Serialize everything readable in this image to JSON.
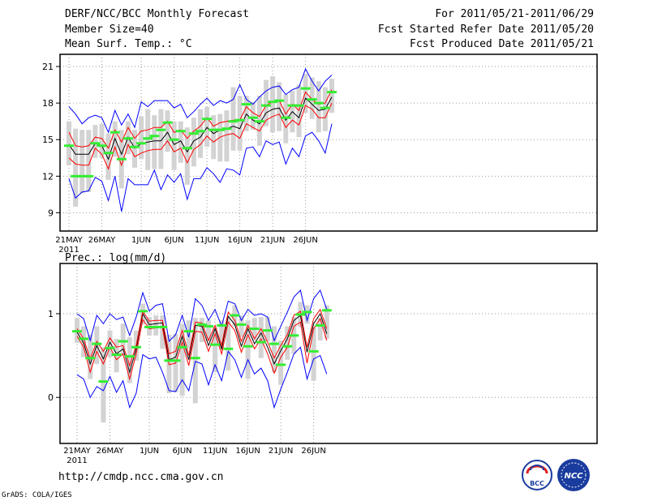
{
  "header": {
    "title": "DERF/NCC/BCC Monthly Forecast",
    "member_size": "Member Size=40",
    "variable_temp": "Mean Surf. Temp.: °C",
    "period": "For 2011/05/21-2011/06/29",
    "refer_date": "Fcst Started Refer Date 2011/05/20",
    "produced_date": "Fcst Produced Date 2011/05/21"
  },
  "footer": {
    "url": "http://cmdp.ncc.cma.gov.cn",
    "credit": "GrADS: COLA/IGES",
    "logo_bcc_text": "BCC",
    "logo_ncc_text": "NCC"
  },
  "colors": {
    "mean": "#000000",
    "spread": "#ff0000",
    "extreme": "#0000ff",
    "box": "#d3d3d3",
    "observed": "#33ee33",
    "grid": "#9a9a9a"
  },
  "chart_data": [
    {
      "id": "temp",
      "type": "line",
      "title": "Mean Surf. Temp.: °C",
      "x_ticks": [
        "21MAY",
        "26MAY",
        "1JUN",
        "6JUN",
        "11JUN",
        "16JUN",
        "21JUN",
        "26JUN"
      ],
      "x_tick_index": [
        0,
        5,
        11,
        16,
        21,
        26,
        31,
        36
      ],
      "x_year": "2011",
      "y_ticks": [
        9,
        12,
        15,
        18,
        21
      ],
      "y_range": [
        7.5,
        22
      ],
      "series": [
        {
          "name": "mean",
          "values": [
            14.6,
            13.8,
            13.8,
            13.8,
            14.7,
            14.5,
            13.4,
            15.1,
            13.8,
            15.2,
            14.3,
            14.7,
            14.8,
            14.9,
            14.9,
            15.6,
            14.6,
            14.9,
            14.0,
            14.9,
            15.2,
            16.0,
            15.5,
            15.8,
            15.9,
            16.1,
            15.9,
            17.1,
            16.6,
            16.3,
            17.2,
            17.5,
            17.6,
            16.6,
            17.3,
            16.8,
            18.4,
            17.9,
            17.4,
            17.5,
            18.5
          ]
        },
        {
          "name": "upper",
          "values": [
            15.6,
            14.5,
            14.4,
            14.5,
            15.2,
            15.1,
            14.3,
            15.8,
            14.8,
            16.0,
            15.1,
            15.7,
            15.8,
            16.0,
            16.0,
            16.5,
            15.6,
            15.8,
            15.1,
            15.7,
            16.1,
            16.8,
            16.1,
            16.4,
            16.5,
            16.6,
            16.6,
            17.7,
            17.2,
            16.9,
            17.8,
            18.1,
            18.2,
            17.1,
            17.9,
            17.4,
            18.9,
            18.3,
            17.9,
            18.0,
            19.1
          ]
        },
        {
          "name": "lower",
          "values": [
            13.5,
            13.0,
            12.9,
            12.9,
            14.3,
            13.8,
            12.6,
            14.4,
            12.9,
            14.6,
            13.6,
            13.9,
            14.1,
            14.2,
            14.2,
            14.9,
            14.0,
            14.3,
            13.1,
            14.2,
            14.6,
            15.3,
            14.8,
            15.2,
            15.4,
            15.5,
            15.1,
            16.3,
            16.0,
            15.7,
            16.6,
            16.9,
            17.1,
            16.0,
            16.6,
            16.2,
            17.8,
            17.5,
            16.8,
            16.8,
            18.0
          ]
        },
        {
          "name": "max",
          "values": [
            17.7,
            17.1,
            16.3,
            16.8,
            17.0,
            16.8,
            15.6,
            17.4,
            16.2,
            17.1,
            16.0,
            18.1,
            17.7,
            18.2,
            18.2,
            18.2,
            17.6,
            17.9,
            16.8,
            17.3,
            17.9,
            18.4,
            17.8,
            18.2,
            18.0,
            18.3,
            19.5,
            18.3,
            17.9,
            18.5,
            19.0,
            19.3,
            19.4,
            18.7,
            19.1,
            19.3,
            20.8,
            19.8,
            19.0,
            19.8,
            20.3
          ]
        },
        {
          "name": "min",
          "values": [
            11.8,
            10.2,
            10.7,
            10.8,
            11.9,
            11.6,
            10.0,
            12.0,
            9.1,
            11.8,
            11.3,
            11.3,
            11.3,
            12.5,
            10.9,
            12.1,
            11.5,
            12.2,
            10.1,
            11.8,
            11.8,
            12.7,
            12.2,
            11.5,
            12.6,
            12.5,
            12.1,
            14.3,
            14.4,
            13.6,
            14.9,
            14.6,
            14.8,
            13.0,
            14.3,
            13.6,
            15.3,
            15.6,
            14.9,
            13.9,
            16.3
          ]
        }
      ],
      "boxes": {
        "low": [
          12.9,
          9.5,
          10.6,
          10.7,
          13.5,
          13.5,
          11.7,
          13.6,
          11.0,
          13.8,
          12.7,
          13.4,
          12.5,
          12.6,
          12.6,
          14.0,
          12.5,
          13.1,
          11.3,
          12.8,
          13.5,
          14.4,
          13.4,
          13.2,
          13.2,
          14.1,
          14.1,
          15.7,
          15.8,
          14.5,
          16.1,
          15.6,
          15.7,
          14.7,
          15.6,
          15.2,
          17.2,
          16.7,
          15.6,
          15.7,
          17.2
        ],
        "high": [
          16.5,
          15.9,
          15.8,
          15.8,
          16.2,
          16.3,
          15.5,
          16.5,
          15.8,
          16.5,
          15.8,
          16.9,
          17.5,
          17.0,
          17.5,
          17.4,
          16.5,
          16.5,
          16.0,
          16.8,
          17.5,
          17.7,
          17.0,
          17.1,
          17.4,
          19.3,
          18.6,
          18.6,
          18.1,
          18.6,
          19.9,
          20.2,
          19.7,
          18.7,
          19.0,
          19.5,
          20.4,
          20.1,
          19.8,
          19.3,
          20.0
        ]
      },
      "observed": [
        14.5,
        12.0,
        12.0,
        12.0,
        14.7,
        14.5,
        13.9,
        15.6,
        13.4,
        15.1,
        14.4,
        14.7,
        15.1,
        15.3,
        15.8,
        16.4,
        15.0,
        15.7,
        14.3,
        15.5,
        15.7,
        16.7,
        15.8,
        15.8,
        15.9,
        16.5,
        16.6,
        17.9,
        16.8,
        16.5,
        17.8,
        18.1,
        18.2,
        16.8,
        17.8,
        17.8,
        19.2,
        18.3,
        18.0,
        17.6,
        18.9
      ]
    },
    {
      "id": "prec",
      "type": "line",
      "title": "Prec.: log(mm/d)",
      "x_ticks": [
        "21MAY",
        "26MAY",
        "1JUN",
        "6JUN",
        "11JUN",
        "16JUN",
        "21JUN",
        "26JUN"
      ],
      "x_tick_index": [
        0,
        5,
        11,
        16,
        21,
        26,
        31,
        36
      ],
      "x_year": "2011",
      "y_ticks": [
        0,
        1
      ],
      "y_range": [
        -0.55,
        1.6
      ],
      "series": [
        {
          "name": "mean",
          "values": [
            0.78,
            0.65,
            0.4,
            0.62,
            0.46,
            0.66,
            0.52,
            0.58,
            0.3,
            0.58,
            1.0,
            0.87,
            0.88,
            0.89,
            0.45,
            0.48,
            0.73,
            0.45,
            0.86,
            0.85,
            0.62,
            0.82,
            0.58,
            0.97,
            0.87,
            0.61,
            0.82,
            0.64,
            0.77,
            0.6,
            0.4,
            0.56,
            0.7,
            0.92,
            0.98,
            0.54,
            0.88,
            1.0,
            0.76
          ]
        },
        {
          "name": "upper",
          "values": [
            0.82,
            0.7,
            0.46,
            0.67,
            0.55,
            0.71,
            0.6,
            0.62,
            0.38,
            0.62,
            1.03,
            0.91,
            0.92,
            0.92,
            0.52,
            0.55,
            0.8,
            0.5,
            0.9,
            0.89,
            0.68,
            0.86,
            0.62,
            1.02,
            0.92,
            0.67,
            0.86,
            0.7,
            0.82,
            0.66,
            0.47,
            0.62,
            0.75,
            0.98,
            1.03,
            0.6,
            0.94,
            1.05,
            0.82
          ]
        },
        {
          "name": "lower",
          "values": [
            0.73,
            0.6,
            0.3,
            0.55,
            0.4,
            0.6,
            0.45,
            0.52,
            0.22,
            0.52,
            0.93,
            0.82,
            0.83,
            0.83,
            0.39,
            0.41,
            0.66,
            0.38,
            0.79,
            0.78,
            0.55,
            0.76,
            0.52,
            0.9,
            0.8,
            0.54,
            0.75,
            0.58,
            0.7,
            0.52,
            0.29,
            0.48,
            0.6,
            0.85,
            0.9,
            0.41,
            0.82,
            0.94,
            0.68
          ]
        },
        {
          "name": "max",
          "values": [
            1.0,
            0.94,
            0.68,
            0.98,
            0.88,
            1.0,
            0.93,
            0.96,
            0.74,
            0.96,
            1.25,
            1.03,
            1.1,
            1.12,
            0.67,
            0.75,
            0.98,
            0.72,
            1.18,
            1.1,
            0.92,
            1.05,
            0.85,
            1.15,
            1.12,
            0.92,
            1.05,
            0.98,
            1.0,
            0.96,
            0.68,
            0.85,
            1.02,
            1.2,
            1.28,
            0.92,
            1.18,
            1.28,
            1.05
          ]
        },
        {
          "name": "min",
          "values": [
            0.27,
            0.22,
            0.0,
            0.13,
            0.08,
            0.25,
            0.06,
            0.2,
            -0.12,
            0.05,
            0.51,
            0.46,
            0.48,
            0.3,
            0.08,
            0.07,
            0.21,
            0.08,
            0.43,
            0.4,
            0.15,
            0.39,
            0.2,
            0.55,
            0.45,
            0.24,
            0.45,
            0.28,
            0.35,
            0.2,
            -0.12,
            0.1,
            0.3,
            0.52,
            0.6,
            0.22,
            0.46,
            0.5,
            0.28
          ]
        },
        {
          "name": "observed",
          "values": [
            0.79,
            0.7,
            0.47,
            0.64,
            0.19,
            0.59,
            0.51,
            0.67,
            0.49,
            0.6,
            1.03,
            0.84,
            0.84,
            0.84,
            0.44,
            0.44,
            0.6,
            0.79,
            0.47,
            0.87,
            0.85,
            0.63,
            0.86,
            0.58,
            0.98,
            0.87,
            0.61,
            0.82,
            0.66,
            0.8,
            0.64,
            0.39,
            0.61,
            0.74,
            0.99,
            1.02,
            0.55,
            0.86,
            1.04
          ]
        }
      ],
      "boxes": {
        "low": [
          0.65,
          0.48,
          0.22,
          0.4,
          -0.3,
          0.48,
          0.3,
          0.5,
          0.17,
          0.44,
          0.87,
          0.74,
          0.74,
          0.58,
          0.05,
          0.06,
          0.02,
          0.58,
          -0.07,
          0.66,
          0.67,
          0.3,
          0.58,
          0.32,
          0.85,
          0.72,
          0.22,
          0.68,
          0.47,
          0.67,
          0.3,
          0.15,
          0.45,
          0.52,
          0.84,
          0.88,
          0.2,
          0.68,
          0.7
        ],
        "high": [
          0.95,
          0.85,
          0.75,
          0.85,
          0.6,
          0.8,
          0.7,
          0.88,
          0.72,
          0.8,
          1.12,
          0.96,
          0.98,
          0.98,
          0.75,
          0.76,
          0.88,
          0.92,
          0.95,
          0.95,
          0.92,
          0.84,
          0.92,
          0.95,
          1.1,
          0.98,
          0.92,
          0.95,
          0.96,
          0.96,
          0.85,
          0.68,
          0.85,
          0.96,
          1.14,
          1.1,
          0.84,
          0.95,
          1.1
        ]
      }
    }
  ]
}
